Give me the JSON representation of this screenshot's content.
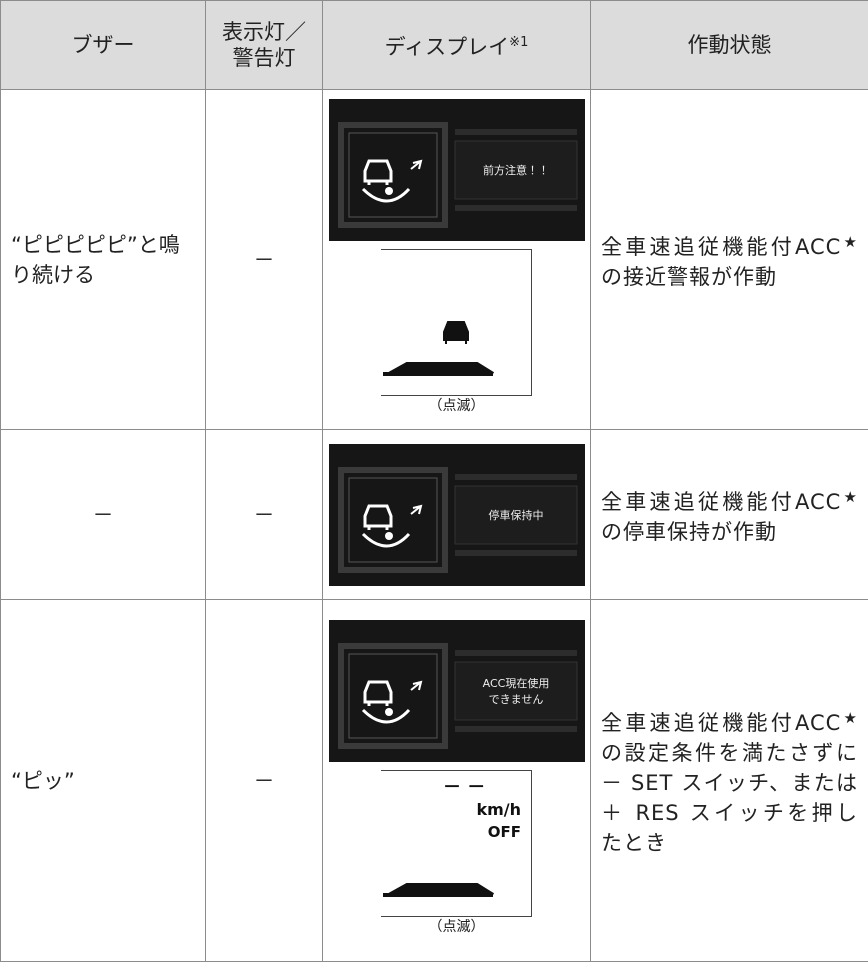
{
  "table": {
    "header": [
      [
        "ブザー"
      ],
      [
        "表示灯／",
        "警告灯"
      ],
      {
        "text": "ディスプレイ",
        "note": "※1"
      },
      [
        "作動状態"
      ]
    ],
    "rows": [
      {
        "buzzer": "“ピピピピピ”と鳴り続ける",
        "indicator": "－",
        "display": {
          "screen": [
            "前方注意！！"
          ],
          "caption": "（点滅）"
        },
        "status": [
          "全車速追従機能付ACC",
          "★",
          "の接近警報が作動"
        ]
      },
      {
        "buzzer": "－",
        "indicator": "－",
        "display": {
          "screen": [
            "停車保持中"
          ]
        },
        "status": [
          "全車速追従機能付ACC",
          "★",
          "の停車保持が作動"
        ]
      },
      {
        "buzzer": "“ピッ”",
        "indicator": "－",
        "display": {
          "screen": [
            "ACC現在使用",
            "できません"
          ],
          "meter": {
            "dashes": "－ －",
            "unit": "km/h",
            "state": "OFF"
          },
          "caption": "（点滅）"
        },
        "status": [
          "全車速追従機能付ACC",
          "★",
          "の設定条件を満たさずに－ SET スイッチ、または＋ RES スイッチを押したとき"
        ]
      }
    ]
  }
}
